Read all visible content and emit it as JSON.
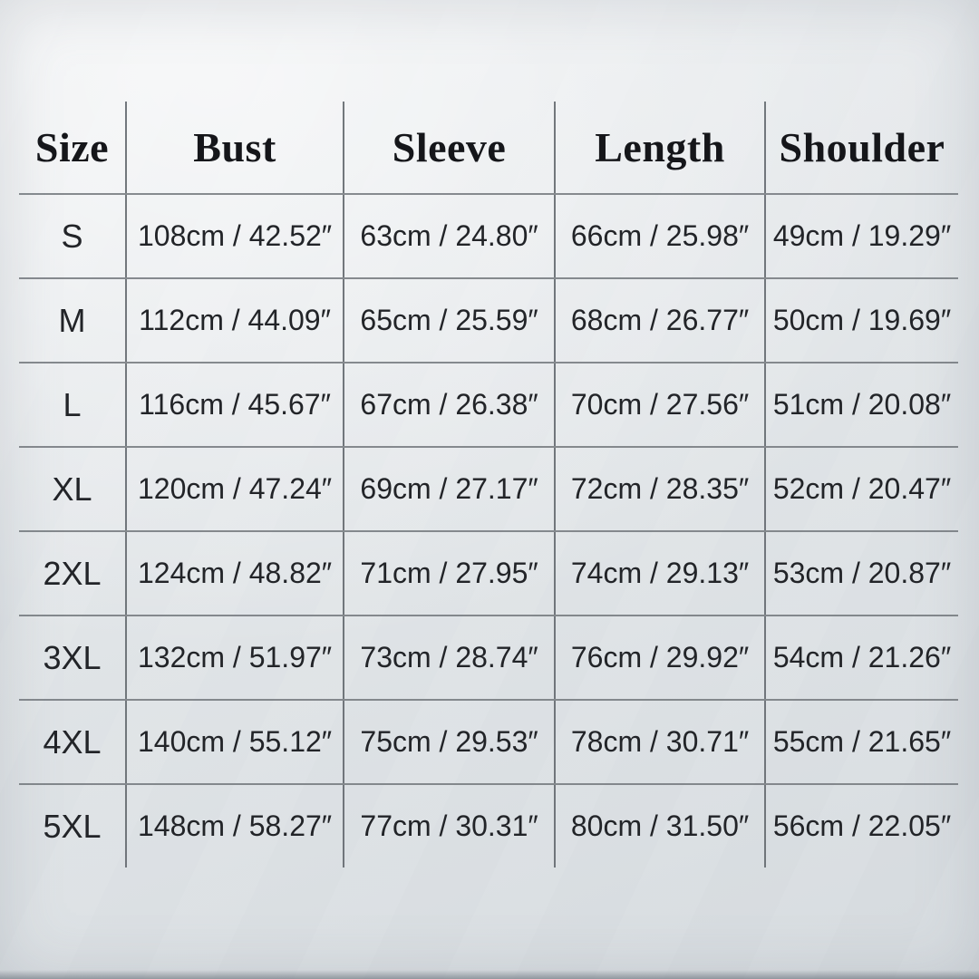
{
  "colors": {
    "background": "#dfe3e6",
    "header_text": "#15161a",
    "body_text": "#222428",
    "grid_line": "#75797d"
  },
  "chart_data": {
    "type": "table",
    "description": "Garment size chart with measurements in centimeters and inches",
    "columns": [
      "Size",
      "Bust",
      "Sleeve",
      "Length",
      "Shoulder"
    ],
    "rows": [
      [
        "S",
        "108cm / 42.52″",
        "63cm / 24.80″",
        "66cm / 25.98″",
        "49cm / 19.29″"
      ],
      [
        "M",
        "112cm / 44.09″",
        "65cm / 25.59″",
        "68cm / 26.77″",
        "50cm / 19.69″"
      ],
      [
        "L",
        "116cm / 45.67″",
        "67cm / 26.38″",
        "70cm / 27.56″",
        "51cm / 20.08″"
      ],
      [
        "XL",
        "120cm / 47.24″",
        "69cm / 27.17″",
        "72cm / 28.35″",
        "52cm / 20.47″"
      ],
      [
        "2XL",
        "124cm / 48.82″",
        "71cm / 27.95″",
        "74cm / 29.13″",
        "53cm / 20.87″"
      ],
      [
        "3XL",
        "132cm / 51.97″",
        "73cm / 28.74″",
        "76cm / 29.92″",
        "54cm / 21.26″"
      ],
      [
        "4XL",
        "140cm / 55.12″",
        "75cm / 29.53″",
        "78cm / 30.71″",
        "55cm / 21.65″"
      ],
      [
        "5XL",
        "148cm / 58.27″",
        "77cm / 30.31″",
        "80cm / 31.50″",
        "56cm / 22.05″"
      ]
    ]
  }
}
